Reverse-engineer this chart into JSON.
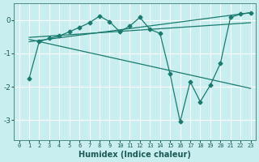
{
  "xlabel": "Humidex (Indice chaleur)",
  "bg_color": "#c8eef0",
  "grid_color": "#ffffff",
  "line_color": "#1a7a6e",
  "xlim": [
    -0.5,
    23.5
  ],
  "ylim": [
    -3.6,
    0.5
  ],
  "xticks": [
    0,
    1,
    2,
    3,
    4,
    5,
    6,
    7,
    8,
    9,
    10,
    11,
    12,
    13,
    14,
    15,
    16,
    17,
    18,
    19,
    20,
    21,
    22,
    23
  ],
  "yticks": [
    0,
    -1,
    -2,
    -3
  ],
  "line1_x": [
    1,
    2,
    3,
    4,
    5,
    6,
    7,
    8,
    9,
    10,
    11,
    12,
    13,
    14,
    15,
    16,
    17,
    18,
    19,
    20,
    21,
    22,
    23
  ],
  "line1_y": [
    -1.75,
    -0.65,
    -0.55,
    -0.48,
    -0.35,
    -0.22,
    -0.08,
    0.12,
    -0.05,
    -0.35,
    -0.18,
    0.08,
    -0.28,
    -0.4,
    -1.62,
    -3.05,
    -1.85,
    -2.45,
    -1.95,
    -1.3,
    0.08,
    0.18,
    0.22
  ],
  "line2_x": [
    1,
    23
  ],
  "line2_y": [
    -0.65,
    0.22
  ],
  "line3_x": [
    1,
    23
  ],
  "line3_y": [
    -0.58,
    -2.05
  ],
  "line4_x": [
    1,
    23
  ],
  "line4_y": [
    -0.52,
    -0.08
  ]
}
